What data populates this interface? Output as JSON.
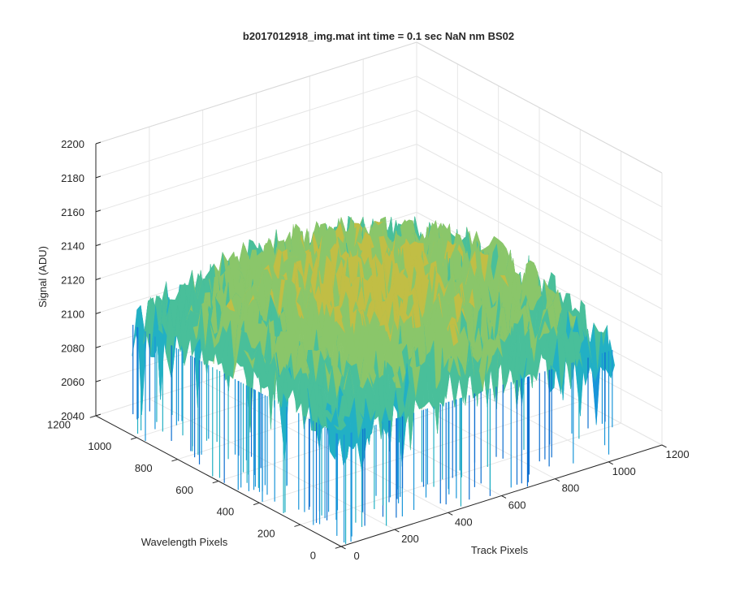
{
  "chart_data": {
    "type": "surface",
    "title": "b2017012918_img.mat int time = 0.1 sec  NaN nm BS02",
    "xlabel": "Track Pixels",
    "ylabel": "Wavelength Pixels",
    "zlabel": "Signal (ADU)",
    "xlim": [
      0,
      1200
    ],
    "ylim": [
      0,
      1200
    ],
    "zlim": [
      2040,
      2200
    ],
    "xticks": [
      "0",
      "200",
      "400",
      "600",
      "800",
      "1000",
      "1200"
    ],
    "yticks": [
      "0",
      "200",
      "400",
      "600",
      "800",
      "1000",
      "1200"
    ],
    "zticks": [
      "2040",
      "2060",
      "2080",
      "2100",
      "2120",
      "2140",
      "2160",
      "2180",
      "2200"
    ],
    "grid": true,
    "colormap": "parula",
    "surface_summary": {
      "x_range": [
        1,
        1024
      ],
      "y_range": [
        1,
        1024
      ],
      "typical_signal": 2115,
      "max_signal": 2180,
      "min_signal": 2040,
      "peak_region": "center",
      "low_region": "front corner"
    }
  },
  "colors": {
    "axis": "#262626",
    "grid": "#e6e6e6",
    "parula": [
      "#0d6fd0",
      "#1995d9",
      "#22b0c4",
      "#49bf9a",
      "#8ac66a",
      "#c1be45",
      "#eab935",
      "#f9d531"
    ]
  }
}
